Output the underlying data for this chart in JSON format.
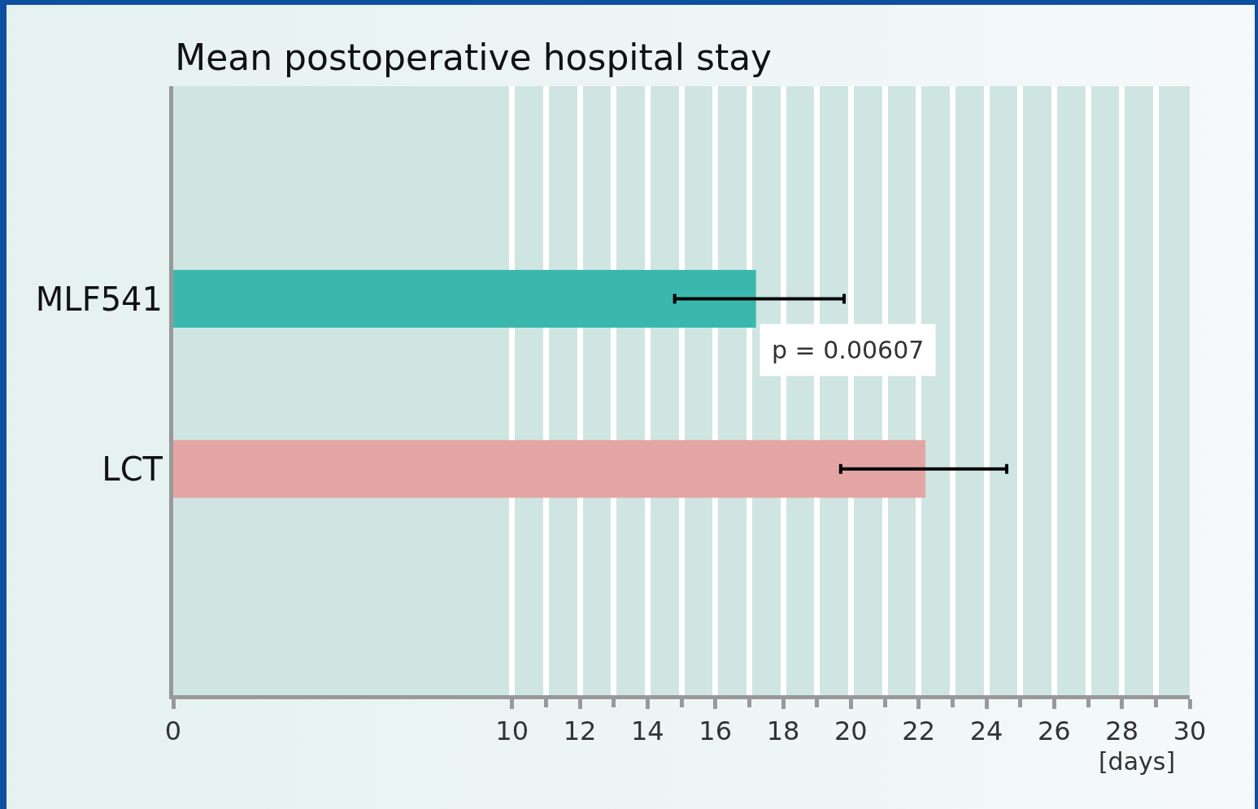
{
  "chart_data": {
    "type": "bar",
    "orientation": "horizontal",
    "title": "Mean postoperative hospital stay",
    "xlabel": "[days]",
    "categories": [
      "MLF541",
      "LCT"
    ],
    "values": [
      17.2,
      22.2
    ],
    "colors": [
      "#3bb8ae",
      "#e3a6a4"
    ],
    "errors": [
      [
        14.8,
        19.8
      ],
      [
        19.7,
        24.6
      ]
    ],
    "xlim": [
      0,
      30
    ],
    "xticks": [
      0,
      10,
      12,
      14,
      16,
      18,
      20,
      22,
      24,
      26,
      28,
      30
    ],
    "grid": "x",
    "annotations": [
      "p = 0.00607"
    ]
  }
}
